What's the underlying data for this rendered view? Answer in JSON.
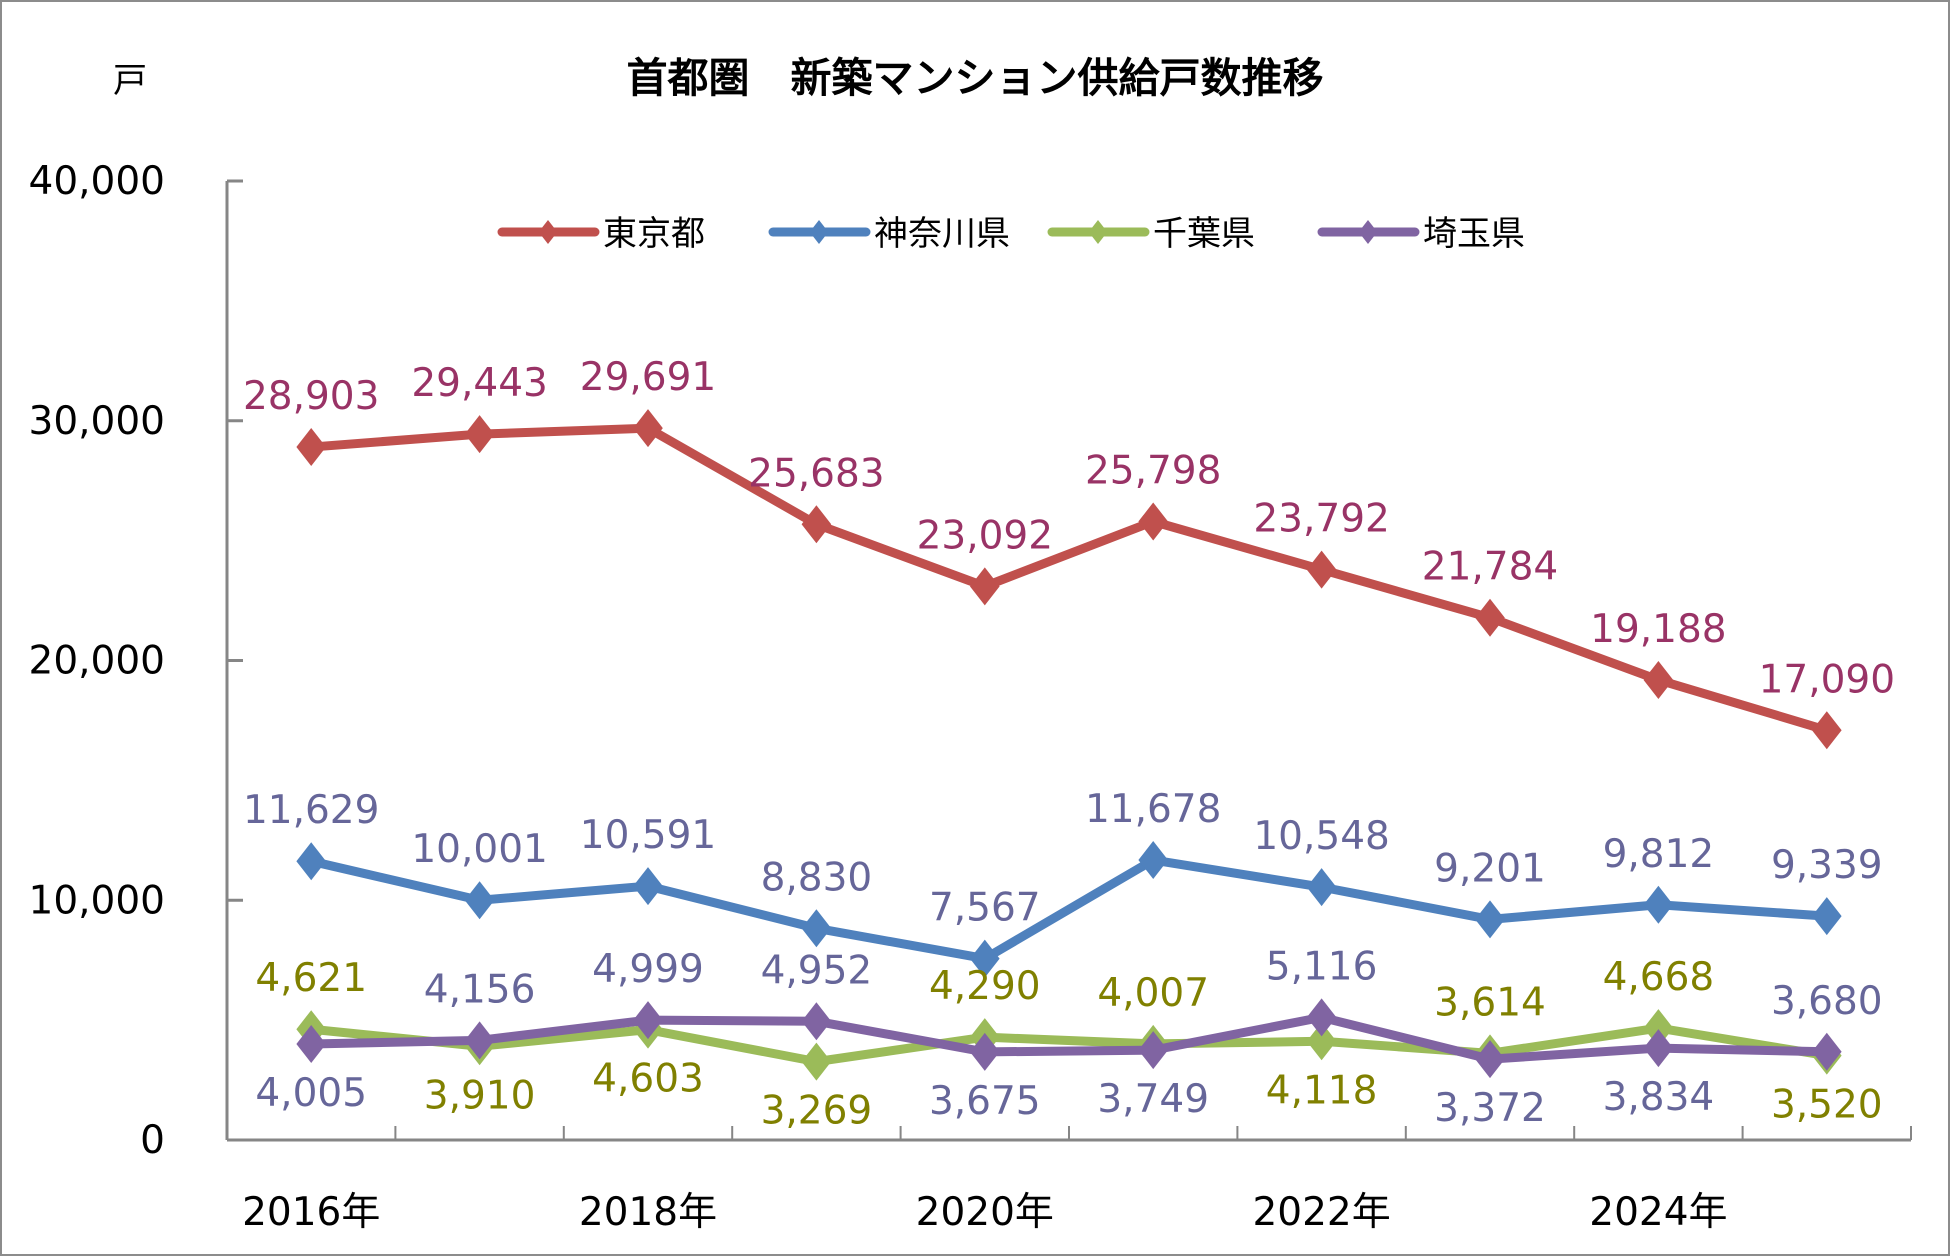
{
  "chart_data": {
    "type": "line",
    "title": "首都圏　新築マンション供給戸数推移",
    "ylabel": "戸",
    "xlabel": "",
    "ylim": [
      0,
      40000
    ],
    "yticks": [
      0,
      10000,
      20000,
      30000,
      40000
    ],
    "ytick_labels": [
      "0",
      "10,000",
      "20,000",
      "30,000",
      "40,000"
    ],
    "categories": [
      "2016年",
      "2017年",
      "2018年",
      "2019年",
      "2020年",
      "2021年",
      "2022年",
      "2023年",
      "2024年",
      "2025年"
    ],
    "xtick_labels": [
      "2016年",
      "",
      "2018年",
      "",
      "2020年",
      "",
      "2022年",
      "",
      "2024年",
      ""
    ],
    "grid": false,
    "legend_position": "top-center",
    "marker": "diamond",
    "series": [
      {
        "name": "東京都",
        "color": "#c0504d",
        "label_color": "#993366",
        "values": [
          28903,
          29443,
          29691,
          25683,
          23092,
          25798,
          23792,
          21784,
          19188,
          17090
        ],
        "labels": [
          "28,903",
          "29,443",
          "29,691",
          "25,683",
          "23,092",
          "25,798",
          "23,792",
          "21,784",
          "19,188",
          "17,090"
        ],
        "label_pos": [
          "above",
          "above",
          "above",
          "above",
          "above",
          "above",
          "above",
          "above",
          "above",
          "above"
        ]
      },
      {
        "name": "神奈川県",
        "color": "#4f81bd",
        "label_color": "#666699",
        "values": [
          11629,
          10001,
          10591,
          8830,
          7567,
          11678,
          10548,
          9201,
          9812,
          9339
        ],
        "labels": [
          "11,629",
          "10,001",
          "10,591",
          "8,830",
          "7,567",
          "11,678",
          "10,548",
          "9,201",
          "9,812",
          "9,339"
        ],
        "label_pos": [
          "above",
          "above",
          "above",
          "above",
          "above",
          "above",
          "above",
          "above",
          "above",
          "above"
        ]
      },
      {
        "name": "千葉県",
        "color": "#9bbb59",
        "label_color": "#808000",
        "values": [
          4621,
          3910,
          4603,
          3269,
          4290,
          4007,
          4118,
          3614,
          4668,
          3520
        ],
        "labels": [
          "4,621",
          "3,910",
          "4,603",
          "3,269",
          "4,290",
          "4,007",
          "4,118",
          "3,614",
          "4,668",
          "3,520"
        ],
        "label_pos": [
          "above",
          "below",
          "below",
          "below",
          "above",
          "above",
          "below",
          "above",
          "above",
          "below"
        ]
      },
      {
        "name": "埼玉県",
        "color": "#8064a2",
        "label_color": "#666699",
        "values": [
          4005,
          4156,
          4999,
          4952,
          3675,
          3749,
          5116,
          3372,
          3834,
          3680
        ],
        "labels": [
          "4,005",
          "4,156",
          "4,999",
          "4,952",
          "3,675",
          "3,749",
          "5,116",
          "3,372",
          "3,834",
          "3,680"
        ],
        "label_pos": [
          "below",
          "above",
          "above",
          "above",
          "below",
          "below",
          "above",
          "below",
          "below",
          "above"
        ]
      }
    ]
  }
}
